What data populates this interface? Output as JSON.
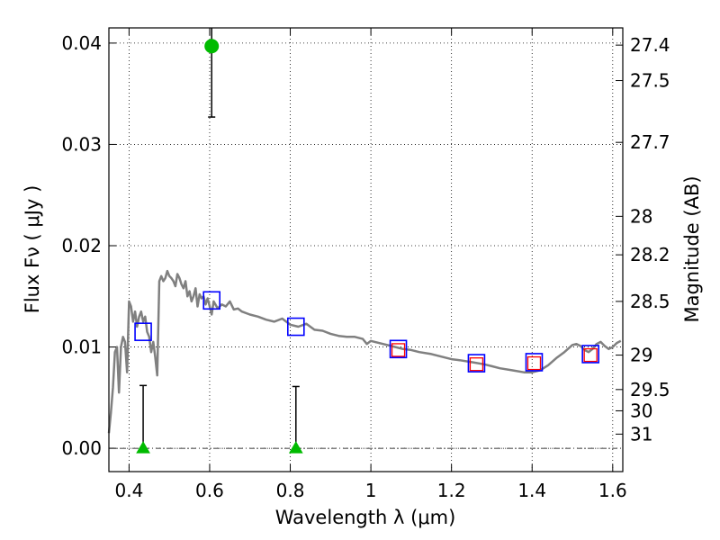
{
  "chart_data": {
    "type": "scatter",
    "xlabel": "Wavelength  λ (μm)",
    "ylabel": "Flux  Fν  ( μJy )",
    "ylabel_right": "Magnitude (AB)",
    "xlim": [
      0.35,
      1.625
    ],
    "ylim": [
      -0.0023,
      0.0415
    ],
    "grid": true,
    "x_ticks": [
      {
        "value": 0.4,
        "label": "0.4"
      },
      {
        "value": 0.6,
        "label": "0.6"
      },
      {
        "value": 0.8,
        "label": "0.8"
      },
      {
        "value": 1.0,
        "label": "1"
      },
      {
        "value": 1.2,
        "label": "1.2"
      },
      {
        "value": 1.4,
        "label": "1.4"
      },
      {
        "value": 1.6,
        "label": "1.6"
      }
    ],
    "y_ticks": [
      {
        "value": 0.0,
        "label": "0.00"
      },
      {
        "value": 0.01,
        "label": "0.01"
      },
      {
        "value": 0.02,
        "label": "0.02"
      },
      {
        "value": 0.03,
        "label": "0.03"
      },
      {
        "value": 0.04,
        "label": "0.04"
      }
    ],
    "magnitude_ticks": [
      {
        "value": 0.0398,
        "label": "27.4"
      },
      {
        "value": 0.0363,
        "label": "27.5"
      },
      {
        "value": 0.0302,
        "label": "27.7"
      },
      {
        "value": 0.0229,
        "label": "28"
      },
      {
        "value": 0.0191,
        "label": "28.2"
      },
      {
        "value": 0.0145,
        "label": "28.5"
      },
      {
        "value": 0.0092,
        "label": "29"
      },
      {
        "value": 0.0058,
        "label": "29.5"
      },
      {
        "value": 0.0037,
        "label": "30"
      },
      {
        "value": 0.0014,
        "label": "31"
      }
    ],
    "series": [
      {
        "kind": "model_sed",
        "color": "#808080",
        "x": [
          0.35,
          0.355,
          0.36,
          0.365,
          0.37,
          0.375,
          0.38,
          0.385,
          0.39,
          0.395,
          0.4,
          0.405,
          0.41,
          0.415,
          0.42,
          0.425,
          0.43,
          0.435,
          0.44,
          0.445,
          0.45,
          0.455,
          0.46,
          0.465,
          0.47,
          0.475,
          0.48,
          0.485,
          0.49,
          0.495,
          0.5,
          0.505,
          0.51,
          0.515,
          0.52,
          0.525,
          0.53,
          0.535,
          0.54,
          0.545,
          0.55,
          0.555,
          0.56,
          0.565,
          0.57,
          0.575,
          0.58,
          0.585,
          0.59,
          0.595,
          0.6,
          0.605,
          0.61,
          0.62,
          0.63,
          0.64,
          0.65,
          0.66,
          0.67,
          0.68,
          0.7,
          0.72,
          0.74,
          0.76,
          0.78,
          0.8,
          0.82,
          0.84,
          0.86,
          0.88,
          0.9,
          0.92,
          0.94,
          0.96,
          0.98,
          0.99,
          1.0,
          1.02,
          1.05,
          1.08,
          1.1,
          1.12,
          1.15,
          1.18,
          1.2,
          1.22,
          1.25,
          1.28,
          1.3,
          1.32,
          1.35,
          1.38,
          1.4,
          1.42,
          1.44,
          1.46,
          1.48,
          1.5,
          1.51,
          1.52,
          1.53,
          1.54,
          1.55,
          1.56,
          1.57,
          1.58,
          1.59,
          1.6,
          1.61,
          1.62
        ],
        "y": [
          0.0015,
          0.0035,
          0.006,
          0.0095,
          0.01,
          0.0055,
          0.01,
          0.011,
          0.0105,
          0.0075,
          0.0145,
          0.014,
          0.0125,
          0.0135,
          0.012,
          0.013,
          0.0135,
          0.0125,
          0.013,
          0.0115,
          0.011,
          0.0095,
          0.0105,
          0.009,
          0.0072,
          0.0165,
          0.017,
          0.0165,
          0.0168,
          0.0175,
          0.017,
          0.0168,
          0.0165,
          0.016,
          0.0172,
          0.0168,
          0.0162,
          0.0158,
          0.0165,
          0.015,
          0.0155,
          0.0145,
          0.015,
          0.0158,
          0.014,
          0.0152,
          0.0148,
          0.015,
          0.0142,
          0.0148,
          0.014,
          0.0132,
          0.0145,
          0.0138,
          0.0142,
          0.014,
          0.0145,
          0.0137,
          0.0138,
          0.0135,
          0.0132,
          0.013,
          0.0127,
          0.0125,
          0.0128,
          0.0122,
          0.012,
          0.0123,
          0.0117,
          0.0116,
          0.0113,
          0.0111,
          0.011,
          0.011,
          0.0108,
          0.0103,
          0.0106,
          0.0104,
          0.0101,
          0.0098,
          0.0097,
          0.0095,
          0.0093,
          0.009,
          0.0088,
          0.0087,
          0.0085,
          0.0083,
          0.0081,
          0.0079,
          0.0077,
          0.0075,
          0.0075,
          0.0077,
          0.0082,
          0.0089,
          0.0095,
          0.0102,
          0.0103,
          0.0101,
          0.0097,
          0.0095,
          0.0098,
          0.0103,
          0.0105,
          0.0101,
          0.0098,
          0.01,
          0.0104,
          0.0106
        ]
      },
      {
        "kind": "photometry_model_blue_squares",
        "color": "#0000ff",
        "points": [
          {
            "x": 0.435,
            "y": 0.0115
          },
          {
            "x": 0.605,
            "y": 0.0146
          },
          {
            "x": 0.814,
            "y": 0.012
          },
          {
            "x": 1.068,
            "y": 0.0098
          },
          {
            "x": 1.262,
            "y": 0.0084
          },
          {
            "x": 1.405,
            "y": 0.0085
          },
          {
            "x": 1.545,
            "y": 0.0093
          }
        ]
      },
      {
        "kind": "photometry_red_squares",
        "color": "#ff0000",
        "points": [
          {
            "x": 1.068,
            "y": 0.0097
          },
          {
            "x": 1.262,
            "y": 0.0083
          },
          {
            "x": 1.405,
            "y": 0.0084
          },
          {
            "x": 1.545,
            "y": 0.0092
          }
        ]
      },
      {
        "kind": "detection_green_circle",
        "color": "#00bb00",
        "points": [
          {
            "x": 0.605,
            "y": 0.0397,
            "err_low": 0.0327,
            "err_high": 0.0415
          }
        ]
      },
      {
        "kind": "upper_limit_green_triangles",
        "color": "#00bb00",
        "points": [
          {
            "x": 0.435,
            "y": 0.0,
            "err_high": 0.0062
          },
          {
            "x": 0.814,
            "y": 0.0,
            "err_high": 0.0061
          }
        ]
      }
    ]
  }
}
